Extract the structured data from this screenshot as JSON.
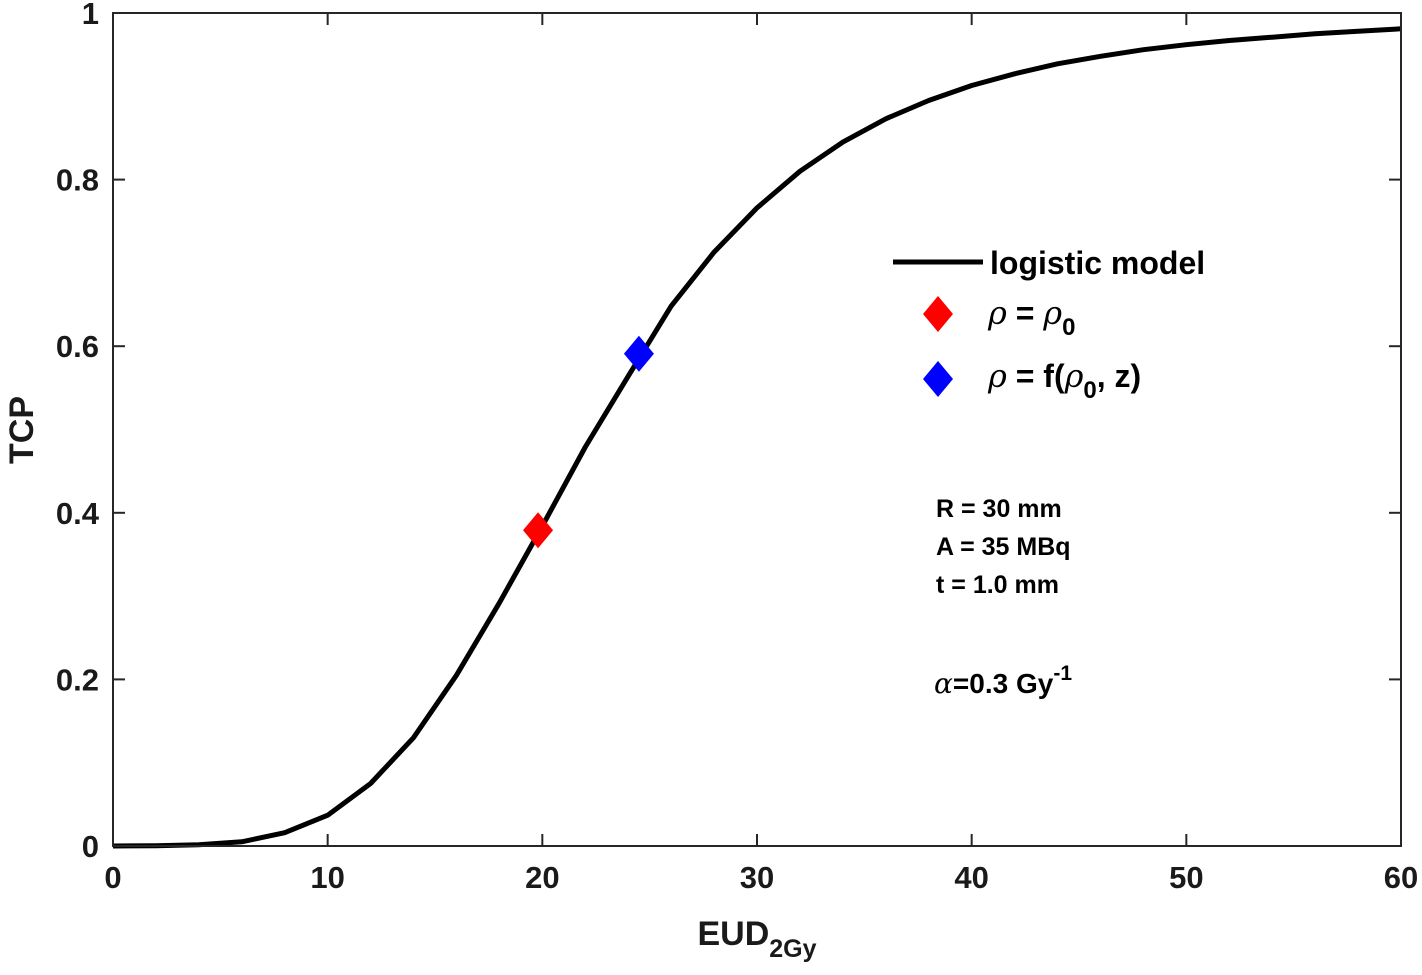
{
  "chart_data": {
    "type": "line",
    "title": "",
    "xlabel": "EUD",
    "xlabel_sub": "2Gy",
    "ylabel": "TCP",
    "xlim": [
      0,
      60
    ],
    "ylim": [
      0,
      1
    ],
    "xticks": [
      "0",
      "10",
      "20",
      "30",
      "40",
      "50",
      "60"
    ],
    "yticks": [
      "0",
      "0.2",
      "0.4",
      "0.6",
      "0.8",
      "1"
    ],
    "grid": false,
    "legend_position": "center-right",
    "series": [
      {
        "name": "logistic model",
        "style": "line",
        "color": "#000000",
        "x": [
          0,
          2,
          4,
          6,
          8,
          10,
          12,
          14,
          16,
          18,
          20,
          22,
          24,
          26,
          28,
          30,
          32,
          34,
          36,
          38,
          40,
          42,
          44,
          46,
          48,
          50,
          52,
          54,
          56,
          58,
          60
        ],
        "y": [
          0.0,
          0.0002,
          0.0015,
          0.005,
          0.016,
          0.037,
          0.075,
          0.13,
          0.205,
          0.292,
          0.384,
          0.479,
          0.564,
          0.648,
          0.713,
          0.766,
          0.81,
          0.845,
          0.873,
          0.895,
          0.913,
          0.927,
          0.939,
          0.948,
          0.956,
          0.962,
          0.967,
          0.971,
          0.975,
          0.978,
          0.981
        ]
      },
      {
        "name": "ρ = ρ0",
        "style": "marker",
        "marker": "diamond",
        "color": "#ff0000",
        "x": [
          19.8
        ],
        "y": [
          0.379
        ]
      },
      {
        "name": "ρ = f(ρ0, z)",
        "style": "marker",
        "marker": "diamond",
        "color": "#0000ff",
        "x": [
          24.5
        ],
        "y": [
          0.591
        ]
      }
    ],
    "legend": {
      "line_label": "logistic model",
      "red": {
        "greek": "ρ",
        "rest": " = ",
        "greek2": "ρ",
        "sub": "0",
        "tail": ""
      },
      "blue": {
        "greek": "ρ",
        "rest": " = f(",
        "greek2": "ρ",
        "sub": "0",
        "tail": ", z)"
      }
    },
    "annotations": {
      "params": [
        "R = 30 mm",
        "A = 35 MBq",
        "t = 1.0 mm"
      ],
      "alpha": {
        "symbol": "α",
        "text": "=0.3 Gy",
        "sup": "-1"
      }
    }
  }
}
